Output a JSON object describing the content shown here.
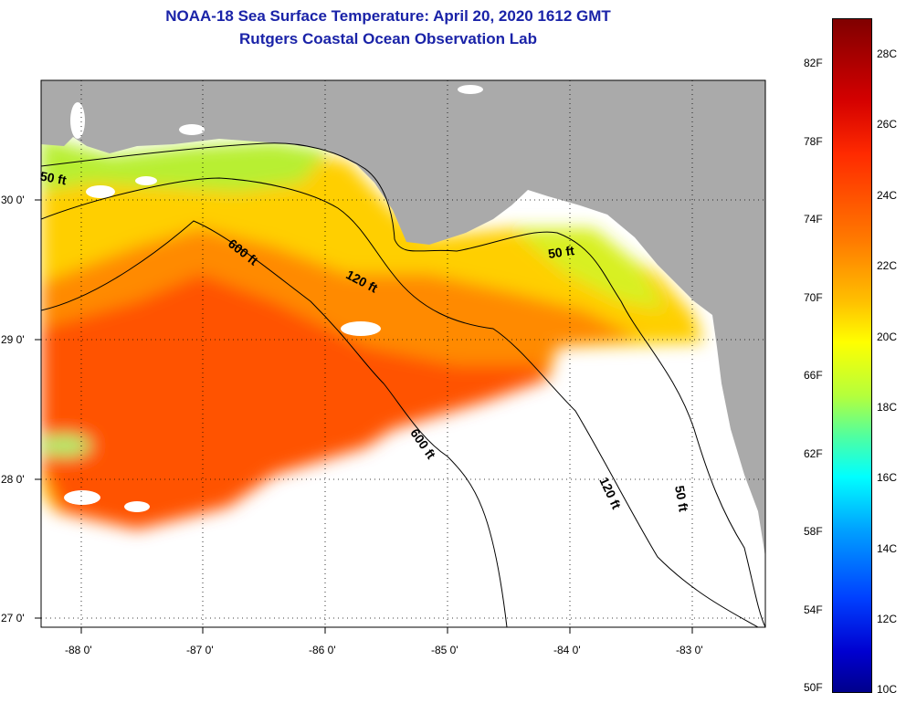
{
  "title_line1": "NOAA-18 Sea Surface Temperature:  April 20, 2020 1612 GMT",
  "title_line2": "Rutgers Coastal Ocean Observation Lab",
  "map": {
    "longitude_labels": [
      "-88 0'",
      "-87 0'",
      "-86 0'",
      "-85 0'",
      "-84 0'",
      "-83 0'"
    ],
    "latitude_labels": [
      "30 0'",
      "29 0'",
      "28 0'",
      "27 0'"
    ],
    "depth_contour_labels": [
      "50 ft",
      "600 ft",
      "120 ft",
      "50 ft",
      "600 ft",
      "120 ft",
      "50 ft"
    ],
    "colors": {
      "land": "#aaaaaa",
      "clouds": "#ffffff",
      "contour": "#000000"
    }
  },
  "colorbar": {
    "fahrenheit_labels": [
      "82F",
      "78F",
      "74F",
      "70F",
      "66F",
      "62F",
      "58F",
      "54F",
      "50F"
    ],
    "celsius_labels": [
      "28C",
      "26C",
      "24C",
      "22C",
      "20C",
      "18C",
      "16C",
      "14C",
      "12C",
      "10C"
    ]
  }
}
